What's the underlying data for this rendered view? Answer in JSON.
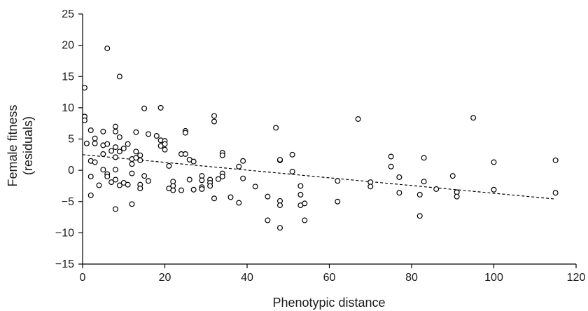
{
  "chart_data": {
    "type": "scatter",
    "title": "",
    "xlabel": "Phenotypic distance",
    "ylabel_lines": [
      "Female fitness",
      "(residuals)"
    ],
    "xlim": [
      0,
      120
    ],
    "ylim": [
      -15,
      25
    ],
    "x_ticks": [
      0,
      20,
      40,
      60,
      80,
      100,
      120
    ],
    "y_ticks": [
      -15,
      -10,
      -5,
      0,
      5,
      10,
      15,
      20,
      25
    ],
    "grid": false,
    "legend": "none",
    "marker": "open-circle",
    "trend_line": {
      "style": "dashed",
      "points": [
        [
          0,
          2.5
        ],
        [
          115,
          -4.6
        ]
      ]
    },
    "points": [
      [
        0.5,
        13.2
      ],
      [
        0.5,
        8.6
      ],
      [
        0.5,
        8.0
      ],
      [
        1,
        4.3
      ],
      [
        2,
        6.4
      ],
      [
        2,
        1.5
      ],
      [
        2,
        -1.0
      ],
      [
        2,
        -4.0
      ],
      [
        3,
        5.1
      ],
      [
        3,
        4.3
      ],
      [
        3,
        1.3
      ],
      [
        4,
        -2.4
      ],
      [
        5,
        6.2
      ],
      [
        5,
        4.0
      ],
      [
        5,
        2.6
      ],
      [
        5,
        0.1
      ],
      [
        6,
        19.5
      ],
      [
        6,
        4.2
      ],
      [
        6,
        -0.6
      ],
      [
        6,
        -1.0
      ],
      [
        7,
        3.1
      ],
      [
        7,
        -1.9
      ],
      [
        8,
        7.0
      ],
      [
        8,
        6.2
      ],
      [
        8,
        3.7
      ],
      [
        8,
        2.1
      ],
      [
        8,
        0.1
      ],
      [
        8,
        -1.5
      ],
      [
        8,
        -6.2
      ],
      [
        9,
        15.0
      ],
      [
        9,
        5.3
      ],
      [
        9,
        3.0
      ],
      [
        9,
        -2.4
      ],
      [
        10,
        3.5
      ],
      [
        10,
        -2.0
      ],
      [
        11,
        4.2
      ],
      [
        11,
        -2.3
      ],
      [
        12,
        1.8
      ],
      [
        12,
        1.0
      ],
      [
        12,
        -0.5
      ],
      [
        12,
        -5.4
      ],
      [
        13,
        6.1
      ],
      [
        13,
        3.0
      ],
      [
        13,
        2.0
      ],
      [
        14,
        2.4
      ],
      [
        14,
        1.6
      ],
      [
        14,
        -2.3
      ],
      [
        14,
        -2.9
      ],
      [
        15,
        9.9
      ],
      [
        15,
        -0.9
      ],
      [
        16,
        5.8
      ],
      [
        16,
        -1.7
      ],
      [
        18,
        5.5
      ],
      [
        19,
        10.0
      ],
      [
        19,
        4.8
      ],
      [
        19,
        3.9
      ],
      [
        20,
        4.7
      ],
      [
        20,
        4.2
      ],
      [
        20,
        3.3
      ],
      [
        21,
        0.7
      ],
      [
        21,
        -2.9
      ],
      [
        22,
        -1.8
      ],
      [
        22,
        -2.5
      ],
      [
        22,
        -3.2
      ],
      [
        24,
        2.6
      ],
      [
        24,
        -3.2
      ],
      [
        25,
        6.3
      ],
      [
        25,
        6.0
      ],
      [
        25,
        2.6
      ],
      [
        26,
        1.7
      ],
      [
        26,
        -1.5
      ],
      [
        27,
        1.4
      ],
      [
        27,
        -3.1
      ],
      [
        29,
        -0.9
      ],
      [
        29,
        -1.6
      ],
      [
        29,
        -2.7
      ],
      [
        29,
        -3.0
      ],
      [
        31,
        -1.5
      ],
      [
        31,
        -2.0
      ],
      [
        31,
        -2.5
      ],
      [
        32,
        8.7
      ],
      [
        32,
        7.8
      ],
      [
        32,
        -4.5
      ],
      [
        33,
        -1.4
      ],
      [
        34,
        2.8
      ],
      [
        34,
        2.4
      ],
      [
        34,
        -0.5
      ],
      [
        34,
        -1.0
      ],
      [
        36,
        -4.3
      ],
      [
        38,
        0.6
      ],
      [
        38,
        -5.2
      ],
      [
        39,
        1.5
      ],
      [
        39,
        -1.3
      ],
      [
        42,
        -2.6
      ],
      [
        45,
        -8.0
      ],
      [
        45,
        -4.2
      ],
      [
        47,
        6.8
      ],
      [
        48,
        1.6
      ],
      [
        48,
        1.7
      ],
      [
        48,
        -4.9
      ],
      [
        48,
        -5.6
      ],
      [
        48,
        -9.2
      ],
      [
        51,
        2.5
      ],
      [
        51,
        -0.2
      ],
      [
        53,
        -2.5
      ],
      [
        53,
        -3.9
      ],
      [
        53,
        -5.6
      ],
      [
        54,
        -5.3
      ],
      [
        54,
        -8.0
      ],
      [
        62,
        -1.7
      ],
      [
        62,
        -5.0
      ],
      [
        67,
        8.2
      ],
      [
        70,
        -1.9
      ],
      [
        70,
        -2.6
      ],
      [
        75,
        2.2
      ],
      [
        75,
        0.6
      ],
      [
        77,
        -1.1
      ],
      [
        77,
        -3.6
      ],
      [
        82,
        -7.3
      ],
      [
        82,
        -3.9
      ],
      [
        83,
        2.0
      ],
      [
        83,
        -1.8
      ],
      [
        86,
        -3.0
      ],
      [
        90,
        -0.9
      ],
      [
        91,
        -3.5
      ],
      [
        91,
        -4.2
      ],
      [
        95,
        8.4
      ],
      [
        100,
        1.3
      ],
      [
        100,
        -3.1
      ],
      [
        115,
        1.6
      ],
      [
        115,
        -3.6
      ]
    ]
  },
  "colors": {
    "axis": "#000000",
    "text": "#1a1a1a",
    "background": "#ffffff",
    "marker_fill": "#ffffff",
    "marker_stroke": "#000000"
  }
}
